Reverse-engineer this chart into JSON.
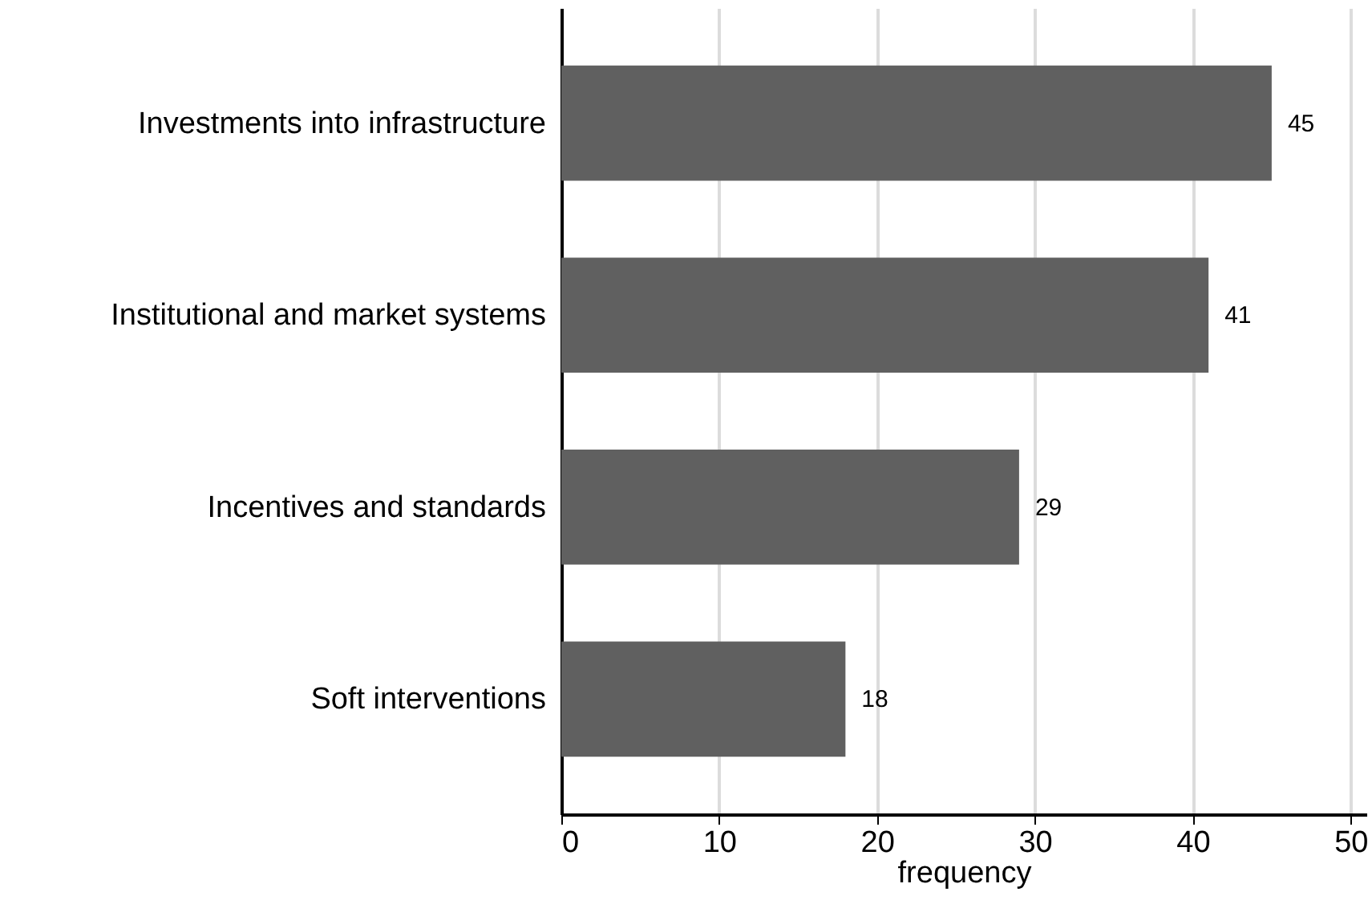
{
  "chart_data": {
    "type": "bar",
    "orientation": "horizontal",
    "xlabel": "frequency",
    "categories": [
      "Investments into infrastructure",
      "Institutional and market systems",
      "Incentives and standards",
      "Soft interventions"
    ],
    "values": [
      45,
      41,
      29,
      18
    ],
    "color": "#606060",
    "xlim": [
      0,
      51
    ],
    "xticks": [
      0,
      10,
      20,
      30,
      40,
      50
    ],
    "grid": "x",
    "data_labels": true
  }
}
